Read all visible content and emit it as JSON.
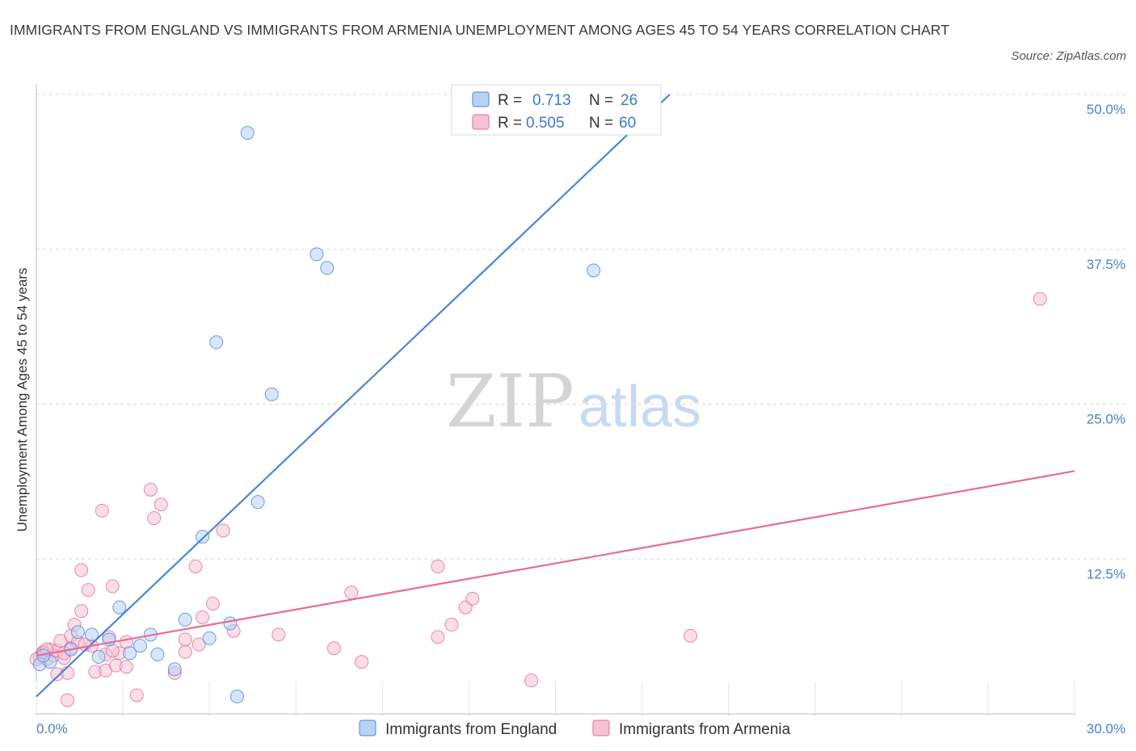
{
  "title": "IMMIGRANTS FROM ENGLAND VS IMMIGRANTS FROM ARMENIA UNEMPLOYMENT AMONG AGES 45 TO 54 YEARS CORRELATION CHART",
  "source": "Source: ZipAtlas.com",
  "watermark": {
    "zip": "ZIP",
    "atlas": "atlas"
  },
  "colors": {
    "england": "#4a86d8",
    "england_fill": "#b8d2f4",
    "armenia": "#e36d96",
    "armenia_fill": "#f6c3d4",
    "axis_text": "#4a7fd0"
  },
  "legend": {
    "r_label": "R =",
    "n_label": "N =",
    "england": {
      "r": "0.713",
      "n": "26"
    },
    "armenia": {
      "r": "0.505",
      "n": "60"
    }
  },
  "chart_data": {
    "type": "scatter",
    "title": "IMMIGRANTS FROM ENGLAND VS IMMIGRANTS FROM ARMENIA UNEMPLOYMENT AMONG AGES 45 TO 54 YEARS CORRELATION CHART",
    "xlabel": "",
    "ylabel": "Unemployment Among Ages 45 to 54 years",
    "xlim": [
      0,
      30
    ],
    "ylim": [
      0,
      50
    ],
    "x_tick_labels": [
      "0.0%",
      "30.0%"
    ],
    "y_ticks": [
      12.5,
      25.0,
      37.5,
      50.0
    ],
    "y_tick_labels": [
      "12.5%",
      "25.0%",
      "37.5%",
      "50.0%"
    ],
    "series": [
      {
        "name": "Immigrants from England",
        "trend": {
          "x": [
            0,
            18.3
          ],
          "y": [
            1.4,
            50.0
          ]
        },
        "points": [
          [
            0.1,
            4.0
          ],
          [
            0.4,
            4.2
          ],
          [
            1.0,
            5.2
          ],
          [
            1.2,
            6.6
          ],
          [
            1.6,
            6.4
          ],
          [
            1.8,
            4.6
          ],
          [
            2.1,
            6.0
          ],
          [
            2.4,
            8.6
          ],
          [
            2.7,
            4.9
          ],
          [
            3.0,
            5.5
          ],
          [
            3.3,
            6.4
          ],
          [
            3.5,
            4.8
          ],
          [
            4.0,
            3.6
          ],
          [
            4.3,
            7.6
          ],
          [
            4.8,
            14.3
          ],
          [
            5.0,
            6.1
          ],
          [
            5.2,
            30.0
          ],
          [
            5.6,
            7.3
          ],
          [
            5.8,
            1.4
          ],
          [
            6.1,
            46.9
          ],
          [
            6.4,
            17.1
          ],
          [
            6.8,
            25.8
          ],
          [
            8.1,
            37.1
          ],
          [
            8.4,
            36.0
          ],
          [
            16.1,
            35.8
          ],
          [
            0.2,
            4.7
          ]
        ]
      },
      {
        "name": "Immigrants from Armenia",
        "trend": {
          "x": [
            0,
            30
          ],
          "y": [
            4.7,
            19.6
          ]
        },
        "points": [
          [
            0.1,
            4.6
          ],
          [
            0.2,
            5.0
          ],
          [
            0.3,
            4.4
          ],
          [
            0.4,
            5.2
          ],
          [
            0.5,
            4.7
          ],
          [
            0.6,
            3.2
          ],
          [
            0.6,
            5.1
          ],
          [
            0.7,
            5.9
          ],
          [
            0.8,
            4.5
          ],
          [
            0.9,
            3.3
          ],
          [
            0.9,
            1.1
          ],
          [
            1.0,
            6.3
          ],
          [
            1.0,
            5.3
          ],
          [
            1.1,
            7.2
          ],
          [
            1.2,
            5.8
          ],
          [
            1.3,
            11.6
          ],
          [
            1.3,
            8.3
          ],
          [
            1.5,
            10.0
          ],
          [
            1.6,
            5.5
          ],
          [
            1.7,
            3.4
          ],
          [
            1.9,
            16.4
          ],
          [
            2.0,
            3.5
          ],
          [
            2.0,
            4.8
          ],
          [
            2.1,
            6.2
          ],
          [
            2.2,
            10.3
          ],
          [
            2.3,
            3.9
          ],
          [
            2.4,
            4.9
          ],
          [
            2.6,
            5.8
          ],
          [
            2.6,
            3.8
          ],
          [
            2.9,
            1.5
          ],
          [
            3.3,
            18.1
          ],
          [
            3.4,
            15.8
          ],
          [
            3.6,
            16.9
          ],
          [
            4.0,
            3.3
          ],
          [
            4.3,
            5.0
          ],
          [
            4.3,
            6.0
          ],
          [
            4.6,
            11.9
          ],
          [
            4.7,
            5.6
          ],
          [
            4.8,
            7.8
          ],
          [
            5.1,
            8.9
          ],
          [
            5.4,
            14.8
          ],
          [
            5.7,
            6.7
          ],
          [
            7.0,
            6.4
          ],
          [
            8.6,
            5.3
          ],
          [
            9.1,
            9.8
          ],
          [
            9.4,
            4.2
          ],
          [
            11.6,
            11.9
          ],
          [
            11.6,
            6.2
          ],
          [
            12.0,
            7.2
          ],
          [
            12.4,
            8.6
          ],
          [
            12.6,
            9.3
          ],
          [
            14.3,
            2.7
          ],
          [
            18.9,
            6.3
          ],
          [
            29.0,
            33.5
          ],
          [
            0.0,
            4.4
          ],
          [
            0.2,
            4.9
          ],
          [
            0.3,
            5.2
          ],
          [
            0.8,
            4.9
          ],
          [
            1.4,
            5.6
          ],
          [
            2.2,
            5.1
          ]
        ]
      }
    ],
    "legend_labels": [
      "Immigrants from England",
      "Immigrants from Armenia"
    ]
  }
}
